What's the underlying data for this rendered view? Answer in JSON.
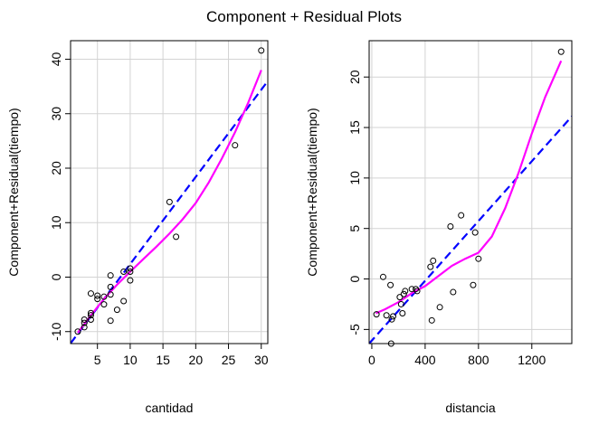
{
  "title": "Component + Residual Plots",
  "chart_data": [
    {
      "type": "scatter",
      "xlabel": "cantidad",
      "ylabel": "Component+Residual(tiempo)",
      "xlim": [
        0.9,
        31
      ],
      "ylim": [
        -12.2,
        43.4
      ],
      "xticks": [
        5,
        10,
        15,
        20,
        25,
        30
      ],
      "yticks": [
        -10,
        0,
        10,
        20,
        30,
        40
      ],
      "grid": true,
      "points": [
        [
          2,
          -10.0
        ],
        [
          3,
          -9.2
        ],
        [
          3,
          -8.4
        ],
        [
          3,
          -7.8
        ],
        [
          4,
          -7.8
        ],
        [
          4,
          -7.0
        ],
        [
          4,
          -6.6
        ],
        [
          4,
          -3.0
        ],
        [
          5,
          -4.0
        ],
        [
          5,
          -3.4
        ],
        [
          6,
          -5.0
        ],
        [
          6,
          -3.6
        ],
        [
          7,
          -8.0
        ],
        [
          7,
          -3.2
        ],
        [
          7,
          -1.8
        ],
        [
          7,
          0.3
        ],
        [
          8,
          -6.0
        ],
        [
          9,
          -4.4
        ],
        [
          9,
          1.0
        ],
        [
          10,
          -0.6
        ],
        [
          10,
          1.0
        ],
        [
          10,
          1.6
        ],
        [
          16,
          13.8
        ],
        [
          17,
          7.4
        ],
        [
          26,
          24.2
        ],
        [
          30,
          41.6
        ]
      ],
      "fit_line": {
        "slope": 1.6,
        "intercept": -13.6
      },
      "smooth": {
        "x": [
          2,
          4,
          6,
          8,
          10,
          12,
          14,
          16,
          18,
          20,
          22,
          24,
          26,
          28,
          30
        ],
        "y": [
          -10.2,
          -7.0,
          -4.0,
          -1.4,
          1.0,
          3.3,
          5.6,
          8.0,
          10.6,
          13.6,
          17.4,
          21.8,
          26.6,
          32.0,
          38.0
        ]
      }
    },
    {
      "type": "scatter",
      "xlabel": "distancia",
      "ylabel": "Component+Residual(tiempo)",
      "xlim": [
        -20,
        1500
      ],
      "ylim": [
        -6.4,
        23.6
      ],
      "xticks": [
        0,
        400,
        800,
        1200
      ],
      "yticks": [
        -5,
        0,
        5,
        10,
        15,
        20
      ],
      "grid": true,
      "points": [
        [
          35,
          -3.5
        ],
        [
          85,
          0.2
        ],
        [
          110,
          -3.6
        ],
        [
          140,
          -0.6
        ],
        [
          145,
          -6.4
        ],
        [
          150,
          -4.0
        ],
        [
          160,
          -3.7
        ],
        [
          210,
          -1.8
        ],
        [
          220,
          -2.5
        ],
        [
          230,
          -3.4
        ],
        [
          240,
          -1.5
        ],
        [
          250,
          -1.2
        ],
        [
          300,
          -1.0
        ],
        [
          330,
          -1.0
        ],
        [
          340,
          -1.2
        ],
        [
          440,
          1.2
        ],
        [
          450,
          -4.1
        ],
        [
          460,
          1.8
        ],
        [
          510,
          -2.8
        ],
        [
          590,
          5.2
        ],
        [
          610,
          -1.3
        ],
        [
          670,
          6.3
        ],
        [
          760,
          -0.6
        ],
        [
          775,
          4.6
        ],
        [
          800,
          2.0
        ],
        [
          1420,
          22.5
        ]
      ],
      "fit_line": {
        "slope": 0.0148,
        "intercept": -6.1
      },
      "smooth": {
        "x": [
          30,
          100,
          200,
          300,
          400,
          500,
          600,
          700,
          800,
          900,
          1000,
          1100,
          1200,
          1300,
          1420
        ],
        "y": [
          -3.4,
          -3.0,
          -2.3,
          -1.4,
          -0.7,
          0.3,
          1.3,
          2.0,
          2.6,
          4.2,
          7.0,
          10.5,
          14.4,
          18.0,
          21.6
        ]
      }
    }
  ]
}
